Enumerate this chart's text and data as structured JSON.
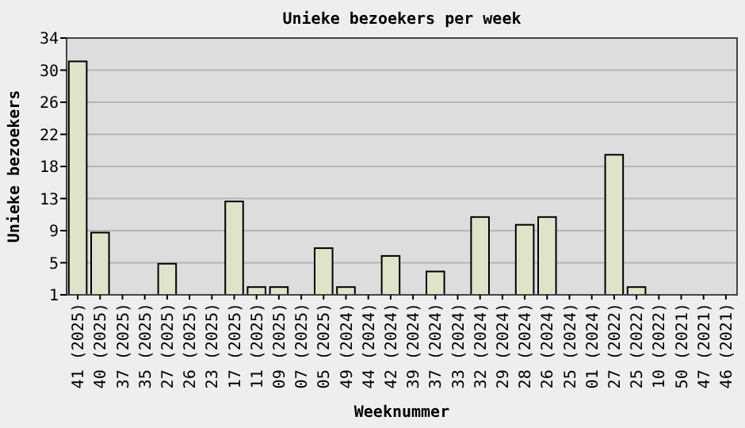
{
  "chart_data": {
    "type": "bar",
    "title": "Unieke bezoekers per week",
    "xlabel": "Weeknummer",
    "ylabel": "Unieke bezoekers",
    "categories": [
      "41 (2025)",
      "40 (2025)",
      "37 (2025)",
      "35 (2025)",
      "27 (2025)",
      "26 (2025)",
      "23 (2025)",
      "17 (2025)",
      "11 (2025)",
      "09 (2025)",
      "07 (2025)",
      "05 (2025)",
      "49 (2024)",
      "44 (2024)",
      "42 (2024)",
      "39 (2024)",
      "37 (2024)",
      "33 (2024)",
      "32 (2024)",
      "29 (2024)",
      "28 (2024)",
      "26 (2024)",
      "25 (2024)",
      "01 (2024)",
      "27 (2022)",
      "25 (2022)",
      "10 (2022)",
      "50 (2021)",
      "47 (2021)",
      "46 (2021)"
    ],
    "values": [
      31,
      9,
      1,
      1,
      5,
      1,
      1,
      13,
      2,
      2,
      1,
      7,
      2,
      1,
      6,
      1,
      4,
      1,
      11,
      1,
      10,
      11,
      1,
      1,
      19,
      2,
      1,
      1,
      1,
      1
    ],
    "color": "#dfe3c9",
    "ylim": [
      1,
      34
    ],
    "yticks": [
      1,
      {
        "value": 5.125,
        "label": "5"
      },
      {
        "value": 9.25,
        "label": "9"
      },
      {
        "value": 13.375,
        "label": "13"
      },
      {
        "value": 17.5,
        "label": "18"
      },
      {
        "value": 21.625,
        "label": "22"
      },
      {
        "value": 25.75,
        "label": "26"
      },
      {
        "value": 29.875,
        "label": "30"
      },
      34
    ],
    "grid": "y"
  }
}
